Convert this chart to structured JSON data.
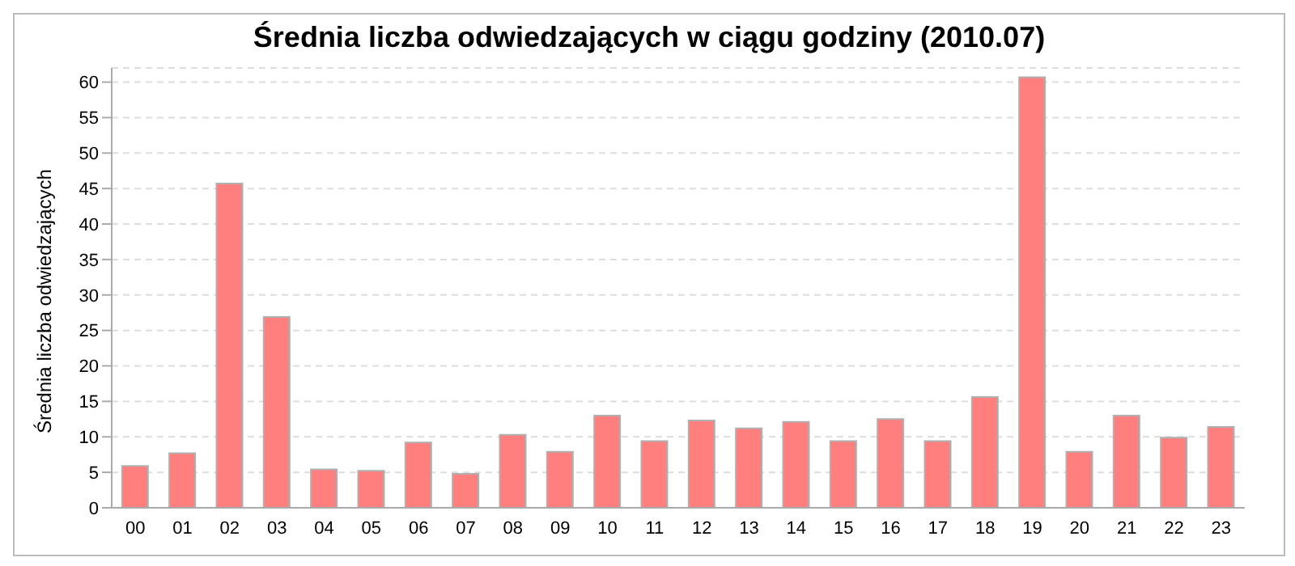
{
  "chart_data": {
    "type": "bar",
    "title": "Średnia liczba odwiedzających w ciągu godziny (2010.07)",
    "ylabel": "Średnia liczba odwiedzających",
    "categories": [
      "00",
      "01",
      "02",
      "03",
      "04",
      "05",
      "06",
      "07",
      "08",
      "09",
      "10",
      "11",
      "12",
      "13",
      "14",
      "15",
      "16",
      "17",
      "18",
      "19",
      "20",
      "21",
      "22",
      "23"
    ],
    "values": [
      5.9,
      7.7,
      45.7,
      26.9,
      5.4,
      5.2,
      9.2,
      4.8,
      10.3,
      7.9,
      13.0,
      9.4,
      12.3,
      11.2,
      12.1,
      9.4,
      12.5,
      9.4,
      15.6,
      60.7,
      7.9,
      13.0,
      9.9,
      11.4
    ],
    "color": "#ff7f7f",
    "ylim": [
      0,
      62
    ],
    "yticks": [
      0,
      5,
      10,
      15,
      20,
      25,
      30,
      35,
      40,
      45,
      50,
      55,
      60
    ],
    "grid": "y"
  }
}
